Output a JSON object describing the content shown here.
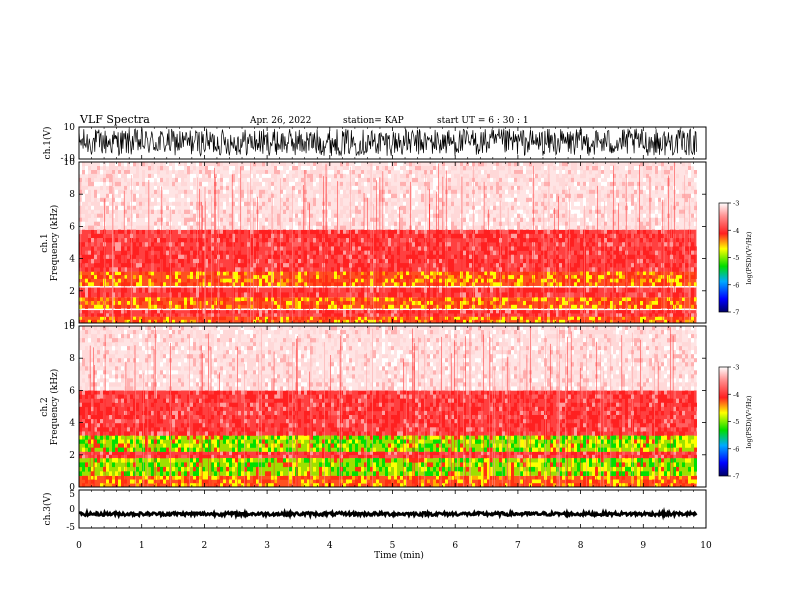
{
  "header": {
    "title": "VLF Spectra",
    "date": "Apr. 26, 2022",
    "station": "station= KAP",
    "start_ut": "start  UT =   6  : 30 : 1"
  },
  "colors": {
    "spectrogram_low": "#ffffff",
    "spectrogram_mid": "#ff2020",
    "spectrogram_high": "#ffff00",
    "spectrogram_peak": "#00dd00",
    "trace": "#000000"
  },
  "chart_data": [
    {
      "type": "line",
      "name": "ch1-waveform",
      "ylabel": "ch.1(V)",
      "yticks": [
        "10",
        "-10"
      ],
      "ylim": [
        -10,
        10
      ],
      "xlim": [
        0,
        10
      ],
      "description_values": {
        "trace_range_V": [
          -8,
          9
        ],
        "trace_end_min": 9.85
      }
    },
    {
      "type": "heatmap",
      "name": "ch1-spectrogram",
      "ylabel": "ch.1\nFrequency (kHz)",
      "ylabel_line1": "ch.1",
      "ylabel_line2": "Frequency  (kHz)",
      "yticks": [
        "0",
        "2",
        "4",
        "6",
        "8",
        "10"
      ],
      "ylim": [
        0,
        10
      ],
      "xlim": [
        0,
        10
      ],
      "data_end_min": 9.85,
      "bands": [
        {
          "from_khz": 0.0,
          "to_khz": 0.4,
          "level": "high"
        },
        {
          "from_khz": 0.4,
          "to_khz": 0.8,
          "level": "mid"
        },
        {
          "from_khz": 0.9,
          "to_khz": 1.6,
          "level": "high"
        },
        {
          "from_khz": 1.6,
          "to_khz": 2.2,
          "level": "mid"
        },
        {
          "from_khz": 2.3,
          "to_khz": 3.2,
          "level": "high"
        },
        {
          "from_khz": 3.2,
          "to_khz": 5.8,
          "level": "mid"
        },
        {
          "from_khz": 5.8,
          "to_khz": 10.0,
          "level": "low"
        }
      ],
      "colorbar": {
        "label": "log(PSD)(V²/Hz)",
        "ticks": [
          "-3",
          "-4",
          "-5",
          "-6",
          "-7"
        ],
        "range": [
          -7,
          -3
        ]
      }
    },
    {
      "type": "heatmap",
      "name": "ch2-spectrogram",
      "ylabel": "ch.2\nFrequency (kHz)",
      "ylabel_line1": "ch.2",
      "ylabel_line2": "Frequency  (kHz)",
      "yticks": [
        "0",
        "2",
        "4",
        "6",
        "8",
        "10"
      ],
      "ylim": [
        0,
        10
      ],
      "xlim": [
        0,
        10
      ],
      "data_end_min": 9.85,
      "bands": [
        {
          "from_khz": 0.0,
          "to_khz": 0.7,
          "level": "high"
        },
        {
          "from_khz": 0.7,
          "to_khz": 1.8,
          "level": "peak"
        },
        {
          "from_khz": 1.8,
          "to_khz": 2.2,
          "level": "mid"
        },
        {
          "from_khz": 2.2,
          "to_khz": 3.2,
          "level": "peak"
        },
        {
          "from_khz": 3.2,
          "to_khz": 6.0,
          "level": "mid"
        },
        {
          "from_khz": 6.0,
          "to_khz": 10.0,
          "level": "low"
        }
      ],
      "colorbar": {
        "label": "log(PSD)(V²/Hz)",
        "ticks": [
          "-3",
          "-4",
          "-5",
          "-6",
          "-7"
        ],
        "range": [
          -7,
          -3
        ]
      }
    },
    {
      "type": "line",
      "name": "ch3-waveform",
      "ylabel": "ch.3(V)",
      "yticks": [
        "5",
        "0",
        "-5"
      ],
      "ylim": [
        -5,
        5
      ],
      "xlim": [
        0,
        10
      ],
      "xlabel": "Time  (min)",
      "xticks": [
        "0",
        "1",
        "2",
        "3",
        "4",
        "5",
        "6",
        "7",
        "8",
        "9",
        "10"
      ],
      "description_values": {
        "trace_level_V": -1.3,
        "trace_end_min": 9.85
      }
    }
  ]
}
